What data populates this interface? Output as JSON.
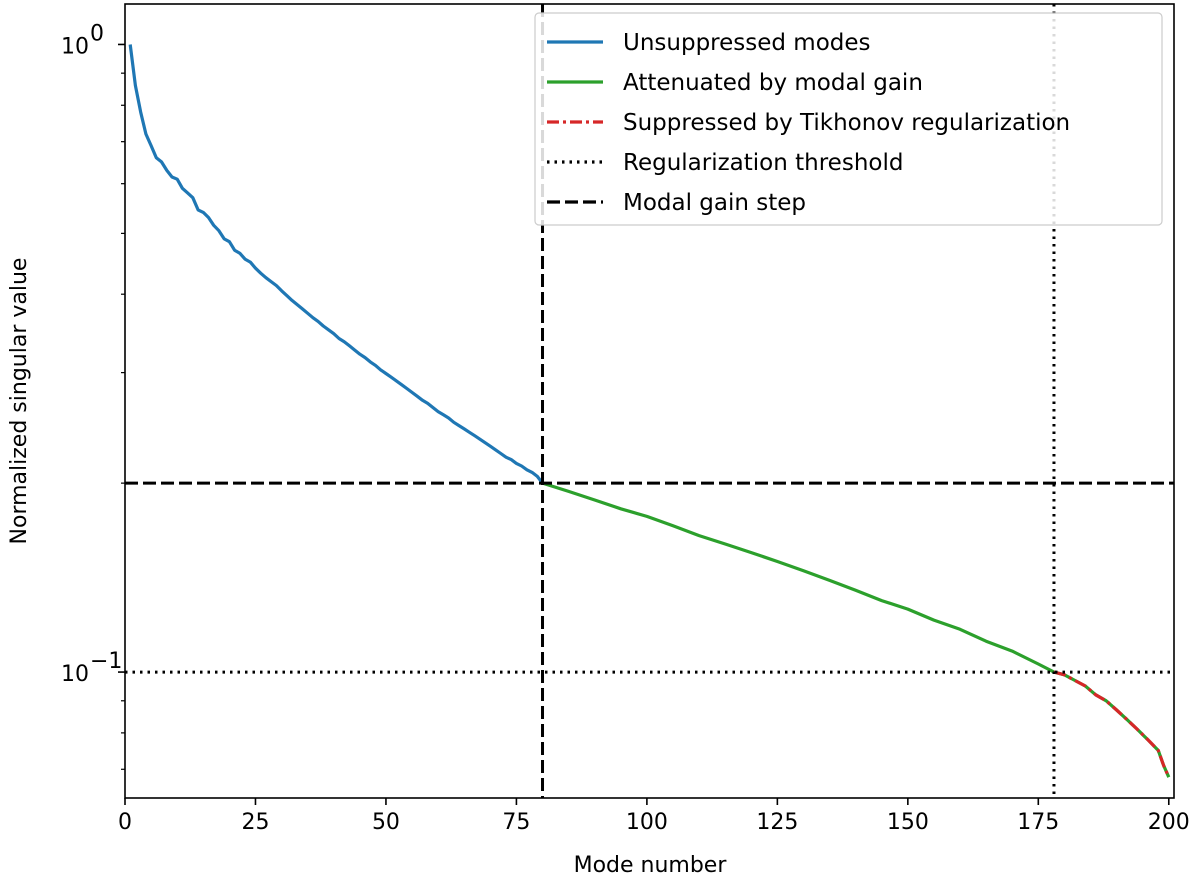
{
  "chart_data": {
    "type": "line",
    "title": "",
    "xlabel": "Mode number",
    "ylabel": "Normalized singular value",
    "xlim": [
      0,
      201
    ],
    "ylim": [
      0.063,
      1.16
    ],
    "yscale": "log",
    "grid": false,
    "legend_position": "top-right",
    "x_ticks": [
      0,
      25,
      50,
      75,
      100,
      125,
      150,
      175,
      200
    ],
    "x_tick_labels": [
      "0",
      "25",
      "50",
      "75",
      "100",
      "125",
      "150",
      "175",
      "200"
    ],
    "y_ticks": [
      {
        "value": 1.0,
        "base": "10",
        "exponent": "0"
      },
      {
        "value": 0.1,
        "base": "10",
        "exponent": "−1"
      }
    ],
    "y_minor_ticks": [
      0.07,
      0.08,
      0.09,
      0.2,
      0.3,
      0.4,
      0.5,
      0.6,
      0.7,
      0.8,
      0.9
    ],
    "series": [
      {
        "name": "Unsuppressed modes",
        "color": "#1f77b4",
        "style": "solid",
        "points": [
          [
            1,
            1.0
          ],
          [
            2,
            0.86
          ],
          [
            3,
            0.78
          ],
          [
            4,
            0.72
          ],
          [
            5,
            0.69
          ],
          [
            6,
            0.66
          ],
          [
            7,
            0.65
          ],
          [
            8,
            0.63
          ],
          [
            9,
            0.615
          ],
          [
            10,
            0.61
          ],
          [
            11,
            0.59
          ],
          [
            12,
            0.58
          ],
          [
            13,
            0.57
          ],
          [
            14,
            0.545
          ],
          [
            15,
            0.54
          ],
          [
            16,
            0.53
          ],
          [
            17,
            0.515
          ],
          [
            18,
            0.505
          ],
          [
            19,
            0.49
          ],
          [
            20,
            0.485
          ],
          [
            21,
            0.47
          ],
          [
            22,
            0.465
          ],
          [
            23,
            0.455
          ],
          [
            24,
            0.45
          ],
          [
            25,
            0.44
          ],
          [
            26,
            0.432
          ],
          [
            27,
            0.425
          ],
          [
            28,
            0.419
          ],
          [
            29,
            0.413
          ],
          [
            30,
            0.405
          ],
          [
            31,
            0.398
          ],
          [
            32,
            0.391
          ],
          [
            33,
            0.385
          ],
          [
            34,
            0.379
          ],
          [
            35,
            0.373
          ],
          [
            36,
            0.367
          ],
          [
            37,
            0.362
          ],
          [
            38,
            0.356
          ],
          [
            39,
            0.351
          ],
          [
            40,
            0.346
          ],
          [
            41,
            0.34
          ],
          [
            42,
            0.336
          ],
          [
            43,
            0.331
          ],
          [
            44,
            0.326
          ],
          [
            45,
            0.321
          ],
          [
            46,
            0.317
          ],
          [
            47,
            0.312
          ],
          [
            48,
            0.308
          ],
          [
            49,
            0.303
          ],
          [
            50,
            0.299
          ],
          [
            51,
            0.295
          ],
          [
            52,
            0.291
          ],
          [
            53,
            0.287
          ],
          [
            54,
            0.283
          ],
          [
            55,
            0.279
          ],
          [
            56,
            0.275
          ],
          [
            57,
            0.271
          ],
          [
            58,
            0.268
          ],
          [
            59,
            0.264
          ],
          [
            60,
            0.26
          ],
          [
            61,
            0.257
          ],
          [
            62,
            0.254
          ],
          [
            63,
            0.25
          ],
          [
            64,
            0.247
          ],
          [
            65,
            0.244
          ],
          [
            66,
            0.241
          ],
          [
            67,
            0.238
          ],
          [
            68,
            0.235
          ],
          [
            69,
            0.232
          ],
          [
            70,
            0.229
          ],
          [
            71,
            0.226
          ],
          [
            72,
            0.223
          ],
          [
            73,
            0.22
          ],
          [
            74,
            0.218
          ],
          [
            75,
            0.215
          ],
          [
            76,
            0.213
          ],
          [
            77,
            0.21
          ],
          [
            78,
            0.208
          ],
          [
            79,
            0.205
          ],
          [
            80,
            0.2
          ]
        ]
      },
      {
        "name": "Attenuated by modal gain",
        "color": "#2ca02c",
        "style": "solid",
        "points": [
          [
            80,
            0.2
          ],
          [
            85,
            0.194
          ],
          [
            90,
            0.188
          ],
          [
            95,
            0.182
          ],
          [
            100,
            0.177
          ],
          [
            105,
            0.171
          ],
          [
            110,
            0.165
          ],
          [
            115,
            0.16
          ],
          [
            120,
            0.155
          ],
          [
            125,
            0.15
          ],
          [
            130,
            0.145
          ],
          [
            135,
            0.14
          ],
          [
            140,
            0.135
          ],
          [
            145,
            0.13
          ],
          [
            150,
            0.126
          ],
          [
            155,
            0.121
          ],
          [
            160,
            0.117
          ],
          [
            165,
            0.112
          ],
          [
            170,
            0.108
          ],
          [
            175,
            0.103
          ],
          [
            178,
            0.1
          ],
          [
            180,
            0.099
          ],
          [
            182,
            0.097
          ],
          [
            184,
            0.095
          ],
          [
            186,
            0.092
          ],
          [
            188,
            0.09
          ],
          [
            190,
            0.087
          ],
          [
            192,
            0.084
          ],
          [
            194,
            0.081
          ],
          [
            196,
            0.078
          ],
          [
            198,
            0.075
          ],
          [
            199,
            0.071
          ],
          [
            200,
            0.068
          ]
        ]
      },
      {
        "name": "Suppressed by Tikhonov regularization",
        "color": "#d62728",
        "style": "dashdot",
        "points": [
          [
            178,
            0.1
          ],
          [
            180,
            0.099
          ],
          [
            182,
            0.097
          ],
          [
            184,
            0.095
          ],
          [
            186,
            0.092
          ],
          [
            188,
            0.09
          ],
          [
            190,
            0.087
          ],
          [
            192,
            0.084
          ],
          [
            194,
            0.081
          ],
          [
            196,
            0.078
          ],
          [
            198,
            0.075
          ],
          [
            199,
            0.071
          ],
          [
            200,
            0.068
          ]
        ]
      },
      {
        "name": "Regularization threshold",
        "color": "#000000",
        "style": "dotted",
        "hline": 0.1,
        "vline": 178
      },
      {
        "name": "Modal gain step",
        "color": "#000000",
        "style": "dashed",
        "hline": 0.2,
        "vline": 80
      }
    ]
  }
}
